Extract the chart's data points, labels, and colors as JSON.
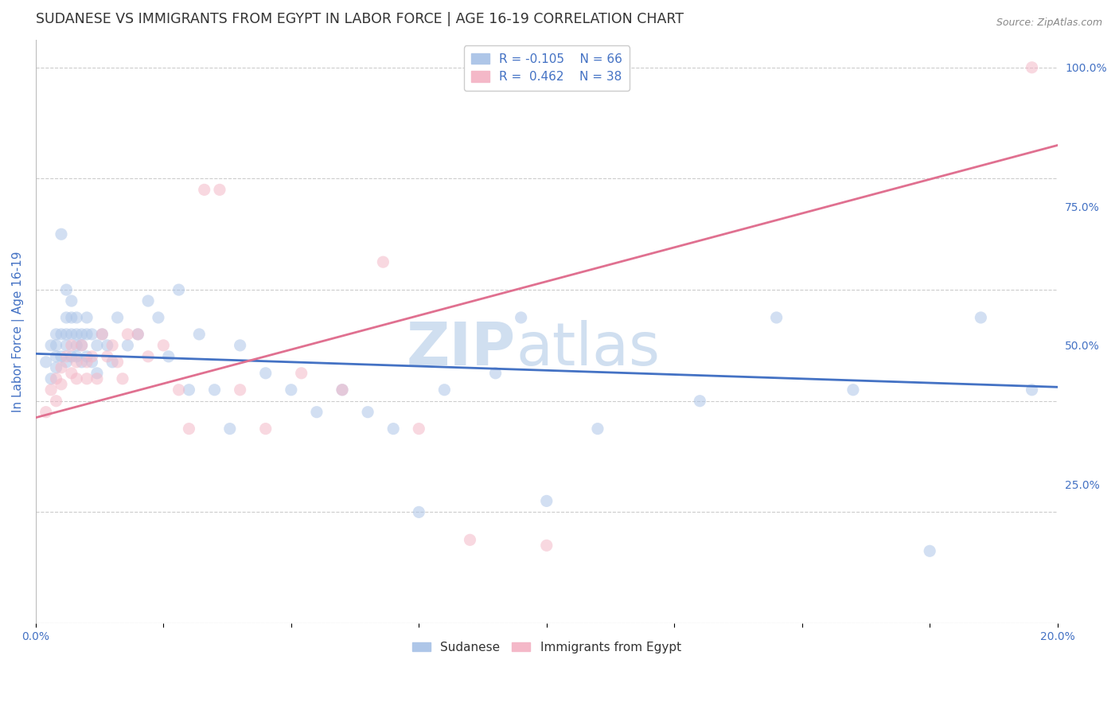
{
  "title": "SUDANESE VS IMMIGRANTS FROM EGYPT IN LABOR FORCE | AGE 16-19 CORRELATION CHART",
  "source": "Source: ZipAtlas.com",
  "ylabel": "In Labor Force | Age 16-19",
  "xlim": [
    0.0,
    0.2
  ],
  "ylim": [
    0.0,
    1.05
  ],
  "x_ticks": [
    0.0,
    0.025,
    0.05,
    0.075,
    0.1,
    0.125,
    0.15,
    0.175,
    0.2
  ],
  "y_ticks_right": [
    0.25,
    0.5,
    0.75,
    1.0
  ],
  "y_tick_labels_right": [
    "25.0%",
    "50.0%",
    "75.0%",
    "100.0%"
  ],
  "legend_R1": "R = -0.105",
  "legend_N1": "N = 66",
  "legend_R2": "R =  0.462",
  "legend_N2": "N = 38",
  "legend_color1": "#aec6e8",
  "legend_color2": "#f4b8c8",
  "sudanese_color": "#aec6e8",
  "egypt_color": "#f4b8c8",
  "line_blue": "#4472c4",
  "line_pink": "#e07090",
  "watermark_zip": "ZIP",
  "watermark_atlas": "atlas",
  "watermark_color": "#d0dff0",
  "background_color": "#ffffff",
  "grid_color": "#cccccc",
  "title_color": "#333333",
  "axis_label_color": "#4472c4",
  "sudanese_x": [
    0.002,
    0.003,
    0.003,
    0.004,
    0.004,
    0.004,
    0.004,
    0.005,
    0.005,
    0.005,
    0.006,
    0.006,
    0.006,
    0.006,
    0.006,
    0.007,
    0.007,
    0.007,
    0.007,
    0.008,
    0.008,
    0.008,
    0.008,
    0.009,
    0.009,
    0.009,
    0.01,
    0.01,
    0.01,
    0.011,
    0.011,
    0.012,
    0.012,
    0.013,
    0.014,
    0.015,
    0.016,
    0.018,
    0.02,
    0.022,
    0.024,
    0.026,
    0.028,
    0.03,
    0.032,
    0.035,
    0.038,
    0.04,
    0.045,
    0.05,
    0.055,
    0.06,
    0.065,
    0.07,
    0.075,
    0.08,
    0.09,
    0.095,
    0.1,
    0.11,
    0.13,
    0.145,
    0.16,
    0.175,
    0.185,
    0.195
  ],
  "sudanese_y": [
    0.47,
    0.44,
    0.5,
    0.52,
    0.48,
    0.5,
    0.46,
    0.7,
    0.48,
    0.52,
    0.6,
    0.55,
    0.52,
    0.5,
    0.47,
    0.58,
    0.55,
    0.52,
    0.48,
    0.55,
    0.52,
    0.5,
    0.48,
    0.52,
    0.5,
    0.47,
    0.55,
    0.52,
    0.48,
    0.52,
    0.47,
    0.5,
    0.45,
    0.52,
    0.5,
    0.47,
    0.55,
    0.5,
    0.52,
    0.58,
    0.55,
    0.48,
    0.6,
    0.42,
    0.52,
    0.42,
    0.35,
    0.5,
    0.45,
    0.42,
    0.38,
    0.42,
    0.38,
    0.35,
    0.2,
    0.42,
    0.45,
    0.55,
    0.22,
    0.35,
    0.4,
    0.55,
    0.42,
    0.13,
    0.55,
    0.42
  ],
  "egypt_x": [
    0.002,
    0.003,
    0.004,
    0.004,
    0.005,
    0.005,
    0.006,
    0.007,
    0.007,
    0.008,
    0.008,
    0.009,
    0.01,
    0.01,
    0.011,
    0.012,
    0.013,
    0.014,
    0.015,
    0.016,
    0.017,
    0.018,
    0.02,
    0.022,
    0.025,
    0.028,
    0.03,
    0.033,
    0.036,
    0.04,
    0.045,
    0.052,
    0.06,
    0.068,
    0.075,
    0.085,
    0.1,
    0.195
  ],
  "egypt_y": [
    0.38,
    0.42,
    0.4,
    0.44,
    0.46,
    0.43,
    0.48,
    0.45,
    0.5,
    0.47,
    0.44,
    0.5,
    0.47,
    0.44,
    0.48,
    0.44,
    0.52,
    0.48,
    0.5,
    0.47,
    0.44,
    0.52,
    0.52,
    0.48,
    0.5,
    0.42,
    0.35,
    0.78,
    0.78,
    0.42,
    0.35,
    0.45,
    0.42,
    0.65,
    0.35,
    0.15,
    0.14,
    1.0
  ],
  "blue_line_x": [
    0.0,
    0.2
  ],
  "blue_line_y": [
    0.485,
    0.425
  ],
  "pink_line_x": [
    0.0,
    0.2
  ],
  "pink_line_y": [
    0.37,
    0.86
  ],
  "marker_size": 120,
  "marker_alpha": 0.55,
  "title_fontsize": 12.5,
  "label_fontsize": 11,
  "tick_fontsize": 10,
  "legend_fontsize": 11
}
